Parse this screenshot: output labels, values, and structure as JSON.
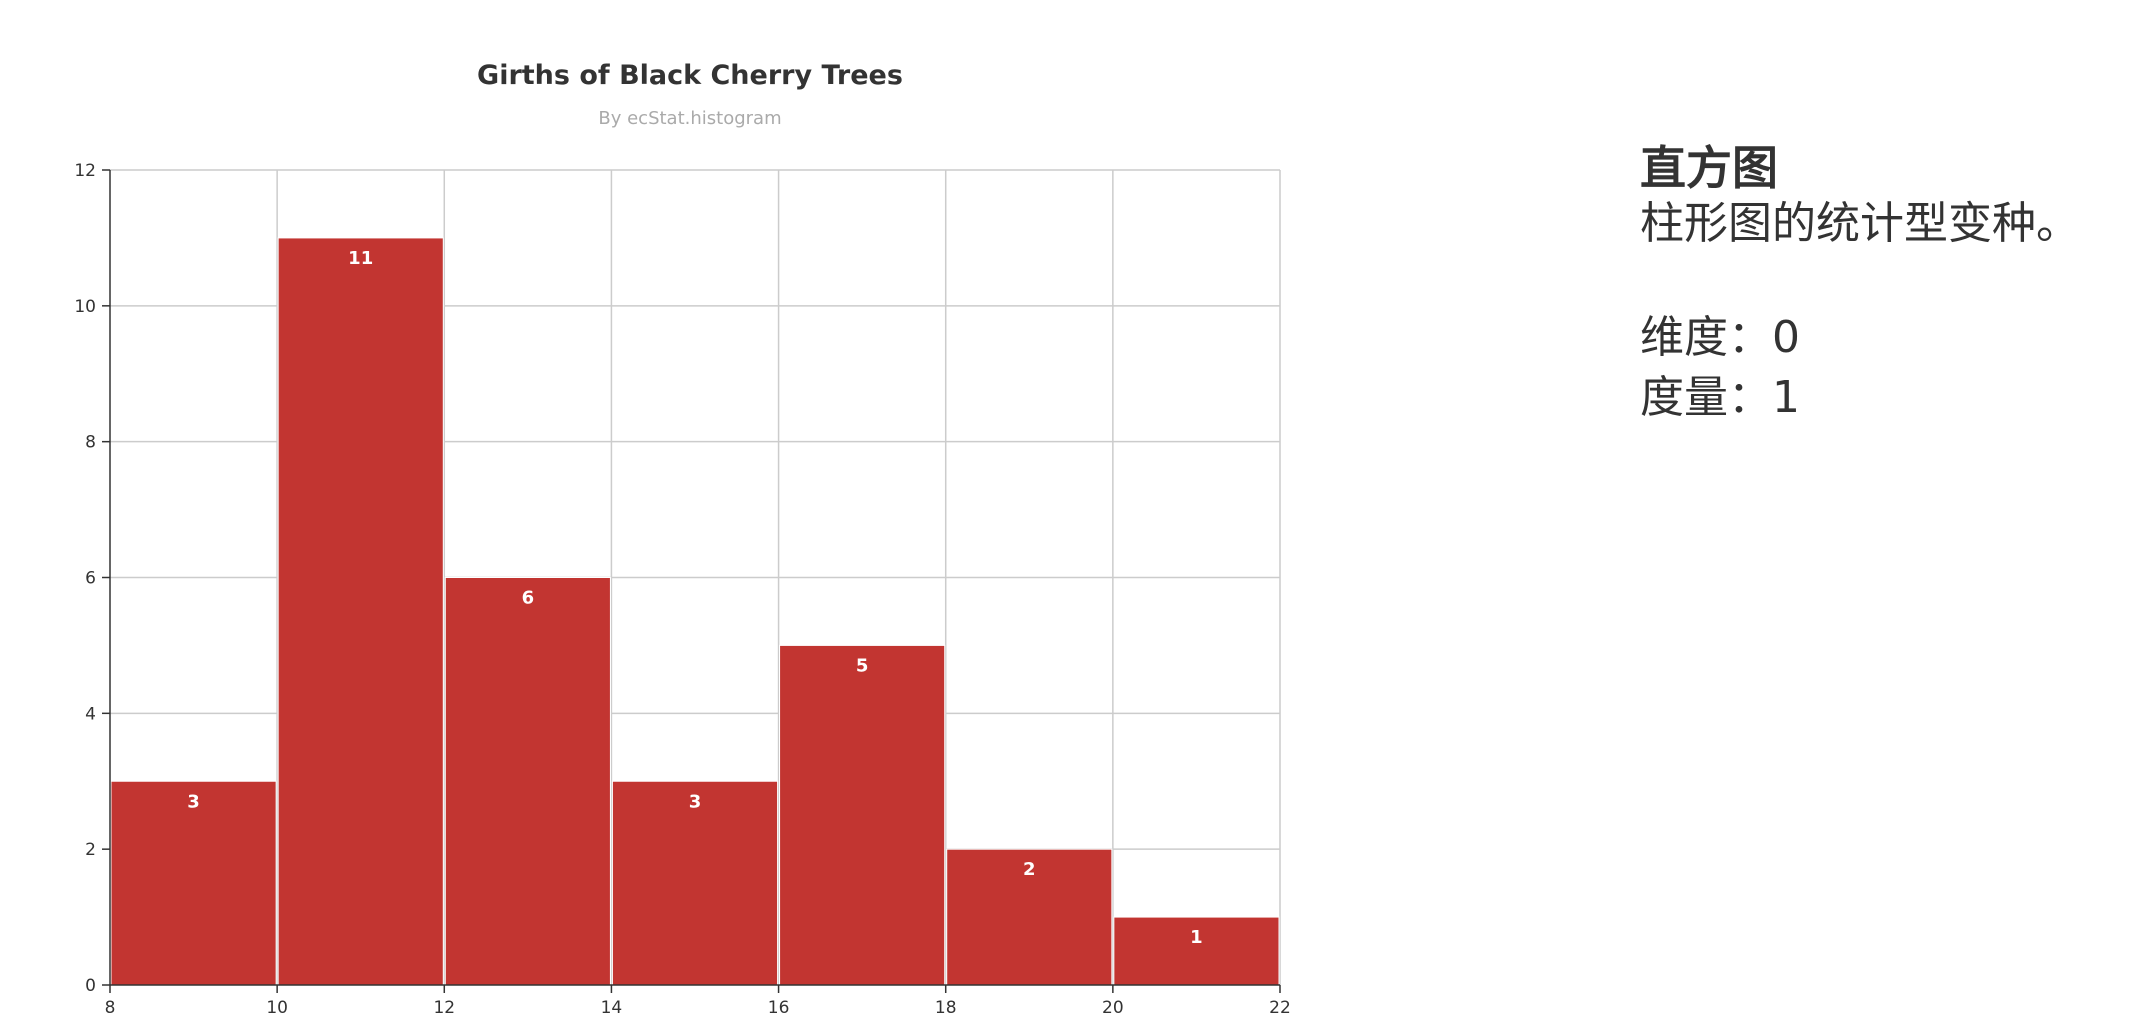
{
  "colors": {
    "bar": "#c23531",
    "bar_border": "#ffffff",
    "grid": "#cccccc",
    "axis": "#333333"
  },
  "chart_data": {
    "type": "bar",
    "title": "Girths of Black Cherry Trees",
    "subtitle": "By ecStat.histogram",
    "xlabel": "",
    "ylabel": "",
    "bins": [
      {
        "x0": 8,
        "x1": 10,
        "value": 3
      },
      {
        "x0": 10,
        "x1": 12,
        "value": 11
      },
      {
        "x0": 12,
        "x1": 14,
        "value": 6
      },
      {
        "x0": 14,
        "x1": 16,
        "value": 3
      },
      {
        "x0": 16,
        "x1": 18,
        "value": 5
      },
      {
        "x0": 18,
        "x1": 20,
        "value": 2
      },
      {
        "x0": 20,
        "x1": 22,
        "value": 1
      }
    ],
    "xlim": [
      8,
      22
    ],
    "ylim": [
      0,
      12
    ],
    "xticks": [
      8,
      10,
      12,
      14,
      16,
      18,
      20,
      22
    ],
    "yticks": [
      0,
      2,
      4,
      6,
      8,
      10,
      12
    ],
    "grid": true,
    "legend": "none"
  },
  "side_panel": {
    "title": "直方图",
    "description": "柱形图的统计型变种。",
    "dimension": "维度：0",
    "measure": "度量：1"
  }
}
